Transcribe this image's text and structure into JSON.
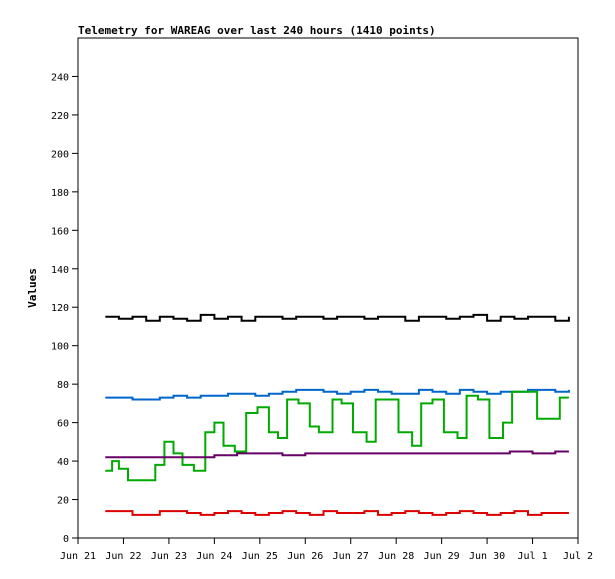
{
  "chart_data": {
    "type": "line",
    "title": "Telemetry for WAREAG over last 240 hours (1410 points)",
    "xlabel": "",
    "ylabel": "Values",
    "x_ticks": [
      "Jun 21",
      "Jun 22",
      "Jun 23",
      "Jun 24",
      "Jun 25",
      "Jun 26",
      "Jun 27",
      "Jun 28",
      "Jun 29",
      "Jun 30",
      "Jul 1",
      "Jul 2"
    ],
    "xlim": [
      0,
      11
    ],
    "ylim": [
      0,
      260
    ],
    "y_ticks": [
      0,
      20,
      40,
      60,
      80,
      100,
      120,
      140,
      160,
      180,
      200,
      220,
      240
    ],
    "grid": false,
    "legend": "none",
    "series": [
      {
        "color": "#000000",
        "x": [
          0.6,
          0.9,
          1.2,
          1.5,
          1.8,
          2.1,
          2.4,
          2.7,
          3.0,
          3.3,
          3.6,
          3.9,
          4.2,
          4.5,
          4.8,
          5.1,
          5.4,
          5.7,
          6.0,
          6.3,
          6.6,
          6.9,
          7.2,
          7.5,
          7.8,
          8.1,
          8.4,
          8.7,
          9.0,
          9.3,
          9.6,
          9.9,
          10.2,
          10.5,
          10.8
        ],
        "y": [
          115,
          114,
          115,
          113,
          115,
          114,
          113,
          116,
          114,
          115,
          113,
          115,
          115,
          114,
          115,
          115,
          114,
          115,
          115,
          114,
          115,
          115,
          113,
          115,
          115,
          114,
          115,
          116,
          113,
          115,
          114,
          115,
          115,
          113,
          115
        ]
      },
      {
        "color": "#0066cc",
        "x": [
          0.6,
          0.9,
          1.2,
          1.5,
          1.8,
          2.1,
          2.4,
          2.7,
          3.0,
          3.3,
          3.6,
          3.9,
          4.2,
          4.5,
          4.8,
          5.1,
          5.4,
          5.7,
          6.0,
          6.3,
          6.6,
          6.9,
          7.2,
          7.5,
          7.8,
          8.1,
          8.4,
          8.7,
          9.0,
          9.3,
          9.6,
          9.9,
          10.2,
          10.5,
          10.8
        ],
        "y": [
          73,
          73,
          72,
          72,
          73,
          74,
          73,
          74,
          74,
          75,
          75,
          74,
          75,
          76,
          77,
          77,
          76,
          75,
          76,
          77,
          76,
          75,
          75,
          77,
          76,
          75,
          77,
          76,
          75,
          76,
          76,
          77,
          77,
          76,
          77
        ]
      },
      {
        "color": "#00aa00",
        "x": [
          0.6,
          0.75,
          0.9,
          1.1,
          1.4,
          1.7,
          1.9,
          2.1,
          2.3,
          2.55,
          2.8,
          3.0,
          3.2,
          3.45,
          3.7,
          3.95,
          4.2,
          4.4,
          4.6,
          4.85,
          5.1,
          5.3,
          5.6,
          5.8,
          6.05,
          6.35,
          6.55,
          6.8,
          7.05,
          7.35,
          7.55,
          7.8,
          8.05,
          8.35,
          8.55,
          8.8,
          9.05,
          9.35,
          9.55,
          9.8,
          10.1,
          10.35,
          10.6,
          10.8
        ],
        "y": [
          35,
          40,
          36,
          30,
          30,
          38,
          50,
          44,
          38,
          35,
          55,
          60,
          48,
          45,
          65,
          68,
          55,
          52,
          72,
          70,
          58,
          55,
          72,
          70,
          55,
          50,
          72,
          72,
          55,
          48,
          70,
          72,
          55,
          52,
          74,
          72,
          52,
          60,
          76,
          76,
          62,
          62,
          73,
          73
        ]
      },
      {
        "color": "#660066",
        "x": [
          0.6,
          1.0,
          1.5,
          2.0,
          2.5,
          3.0,
          3.5,
          4.0,
          4.5,
          5.0,
          5.5,
          6.0,
          6.5,
          7.0,
          7.5,
          8.0,
          8.5,
          9.0,
          9.5,
          10.0,
          10.5,
          10.8
        ],
        "y": [
          42,
          42,
          42,
          42,
          42,
          43,
          44,
          44,
          43,
          44,
          44,
          44,
          44,
          44,
          44,
          44,
          44,
          44,
          45,
          44,
          45,
          45
        ]
      },
      {
        "color": "#dd0000",
        "x": [
          0.6,
          0.9,
          1.2,
          1.5,
          1.8,
          2.1,
          2.4,
          2.7,
          3.0,
          3.3,
          3.6,
          3.9,
          4.2,
          4.5,
          4.8,
          5.1,
          5.4,
          5.7,
          6.0,
          6.3,
          6.6,
          6.9,
          7.2,
          7.5,
          7.8,
          8.1,
          8.4,
          8.7,
          9.0,
          9.3,
          9.6,
          9.9,
          10.2,
          10.5,
          10.8
        ],
        "y": [
          14,
          14,
          12,
          12,
          14,
          14,
          13,
          12,
          13,
          14,
          13,
          12,
          13,
          14,
          13,
          12,
          14,
          13,
          13,
          14,
          12,
          13,
          14,
          13,
          12,
          13,
          14,
          13,
          12,
          13,
          14,
          12,
          13,
          13,
          13
        ]
      }
    ]
  }
}
